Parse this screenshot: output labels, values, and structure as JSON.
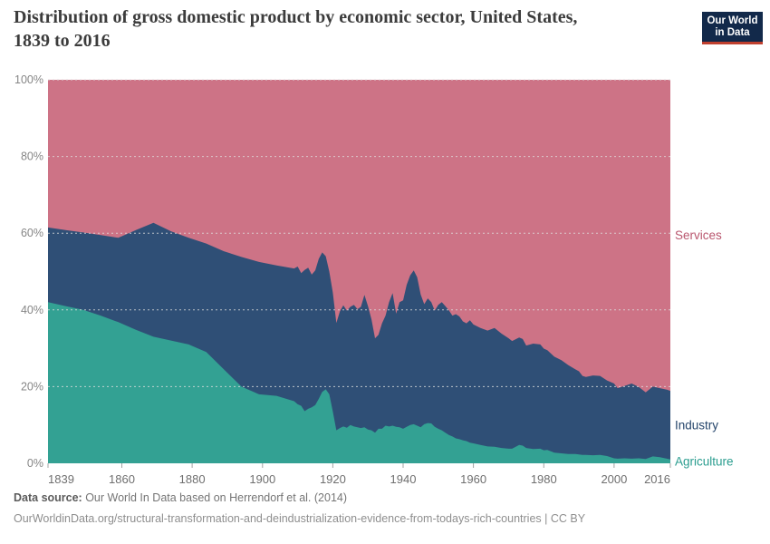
{
  "header": {
    "title": "Distribution of gross domestic product by economic sector, United States, 1839 to 2016",
    "logo_line1": "Our World",
    "logo_line2": "in Data",
    "logo_bg_color": "#12294a",
    "logo_accent_color": "#c0402f"
  },
  "footer": {
    "source_label": "Data source:",
    "source_text": " Our World In Data based on Herrendorf et al. (2014)",
    "license_line": "OurWorldinData.org/structural-transformation-and-deindustrialization-evidence-from-todays-rich-countries | CC BY"
  },
  "chart_data": {
    "type": "area",
    "stacked": true,
    "percent_scale": true,
    "title": "Distribution of gross domestic product by economic sector, United States, 1839 to 2016",
    "xlabel": "",
    "ylabel": "",
    "x_range": [
      1839,
      2016
    ],
    "ylim": [
      0,
      100
    ],
    "unit": "%",
    "grid": "horizontal dashed",
    "legend_position": "right of plot, series-colored labels",
    "y_ticks": {
      "values": [
        0,
        20,
        40,
        60,
        80,
        100
      ],
      "labels": [
        "0%",
        "20%",
        "40%",
        "60%",
        "80%",
        "100%"
      ]
    },
    "x_ticks": {
      "values": [
        1839,
        1860,
        1880,
        1900,
        1920,
        1940,
        1960,
        1980,
        2000,
        2016
      ],
      "labels": [
        "1839",
        "1860",
        "1880",
        "1900",
        "1920",
        "1940",
        "1960",
        "1980",
        "2000",
        "2016"
      ]
    },
    "x": [
      1839,
      1844,
      1849,
      1854,
      1859,
      1864,
      1869,
      1874,
      1879,
      1884,
      1889,
      1894,
      1899,
      1904,
      1909,
      1910,
      1911,
      1912,
      1913,
      1914,
      1915,
      1916,
      1917,
      1918,
      1919,
      1920,
      1921,
      1922,
      1923,
      1924,
      1925,
      1926,
      1927,
      1928,
      1929,
      1930,
      1931,
      1932,
      1933,
      1934,
      1935,
      1936,
      1937,
      1938,
      1939,
      1940,
      1941,
      1942,
      1943,
      1944,
      1945,
      1946,
      1947,
      1948,
      1949,
      1950,
      1951,
      1952,
      1953,
      1954,
      1955,
      1956,
      1957,
      1958,
      1959,
      1960,
      1962,
      1964,
      1966,
      1968,
      1970,
      1971,
      1973,
      1974,
      1975,
      1977,
      1979,
      1980,
      1981,
      1983,
      1985,
      1987,
      1989,
      1990,
      1991,
      1992,
      1994,
      1996,
      1998,
      2000,
      2001,
      2003,
      2005,
      2007,
      2009,
      2011,
      2013,
      2015,
      2016
    ],
    "series": [
      {
        "name": "Agriculture",
        "color": "#33a193",
        "label_color": "#2a9d8f",
        "values": [
          42,
          41,
          40,
          38.5,
          36.8,
          34.8,
          33,
          32,
          31,
          29,
          24.5,
          20,
          18,
          17.6,
          16.2,
          15.4,
          15,
          13.6,
          14.2,
          14.6,
          15.2,
          16.8,
          18.6,
          19.3,
          18,
          13.5,
          8.6,
          9.2,
          9.6,
          9.3,
          10,
          9.6,
          9.4,
          9.2,
          9.4,
          8.8,
          8.6,
          8,
          9,
          9,
          9.8,
          9.6,
          9.8,
          9.5,
          9.4,
          9,
          9.5,
          10,
          10.2,
          9.8,
          9.4,
          10.2,
          10.5,
          10.4,
          9.5,
          9,
          8.6,
          8,
          7.4,
          7,
          6.5,
          6.3,
          6,
          5.8,
          5.4,
          5.2,
          4.8,
          4.4,
          4.3,
          4,
          3.8,
          3.8,
          4.8,
          4.6,
          4,
          3.7,
          3.8,
          3.4,
          3.5,
          2.8,
          2.6,
          2.4,
          2.4,
          2.3,
          2.2,
          2.2,
          2.1,
          2.2,
          1.9,
          1.3,
          1.2,
          1.3,
          1.2,
          1.3,
          1.1,
          1.8,
          1.6,
          1.2,
          1
        ]
      },
      {
        "name": "Industry",
        "color": "#2f4f76",
        "label_color": "#25456b",
        "values": [
          19.5,
          19.8,
          20.2,
          21,
          22,
          26,
          29.7,
          28.5,
          27.8,
          28.3,
          30.8,
          33.8,
          34.5,
          34,
          34.6,
          35.9,
          34.6,
          36.8,
          36.8,
          34.6,
          35.1,
          36.5,
          36.4,
          34.7,
          32,
          31,
          28,
          30.4,
          31.6,
          30.5,
          30.8,
          31.7,
          30.8,
          31.6,
          34.5,
          32.2,
          28.9,
          24.6,
          24.5,
          27.5,
          28.7,
          32.4,
          34.6,
          29.5,
          32.6,
          33.5,
          37,
          39,
          40.1,
          38.7,
          34.6,
          31.3,
          32.5,
          31.6,
          30.3,
          32.3,
          33.4,
          33,
          32.5,
          31.5,
          32.4,
          32,
          31,
          30.7,
          31.9,
          31,
          30.5,
          30.2,
          31,
          29.8,
          28.8,
          28.1,
          28,
          27.8,
          26.7,
          27.5,
          27.2,
          26.5,
          26,
          25,
          24.3,
          23.2,
          22.1,
          21.7,
          20.6,
          20.3,
          20.8,
          20.6,
          19.7,
          19.5,
          18.4,
          18.9,
          19.6,
          18.6,
          17.4,
          18.2,
          18,
          18,
          17.9
        ]
      },
      {
        "name": "Services",
        "color": "#cd7386",
        "label_color": "#b9566e",
        "values": [
          38.5,
          39.2,
          39.8,
          40.5,
          41.2,
          39.2,
          37.3,
          39.5,
          41.2,
          42.7,
          44.7,
          46.2,
          47.5,
          48.4,
          49.2,
          48.7,
          50.4,
          49.6,
          49,
          50.8,
          49.7,
          46.7,
          45,
          46,
          50,
          55.5,
          63.4,
          60.4,
          58.8,
          60.2,
          59.2,
          58.7,
          59.8,
          59.2,
          56.1,
          59,
          62.5,
          67.4,
          66.5,
          63.5,
          61.5,
          58,
          55.6,
          61,
          58,
          57.5,
          53.5,
          51,
          49.7,
          51.5,
          56,
          58.5,
          57,
          58,
          60.2,
          58.7,
          58,
          59,
          60.1,
          61.5,
          61.1,
          61.7,
          63,
          63.5,
          62.7,
          63.8,
          64.7,
          65.4,
          64.7,
          66.2,
          67.4,
          68.1,
          67.2,
          67.6,
          69.3,
          68.8,
          69,
          70.1,
          70.5,
          72.2,
          73.1,
          74.4,
          75.5,
          76,
          77.2,
          77.5,
          77.1,
          77.2,
          78.4,
          79.2,
          80.4,
          79.8,
          79.2,
          80.1,
          81.5,
          80,
          80.4,
          80.8,
          81.1
        ]
      }
    ]
  }
}
